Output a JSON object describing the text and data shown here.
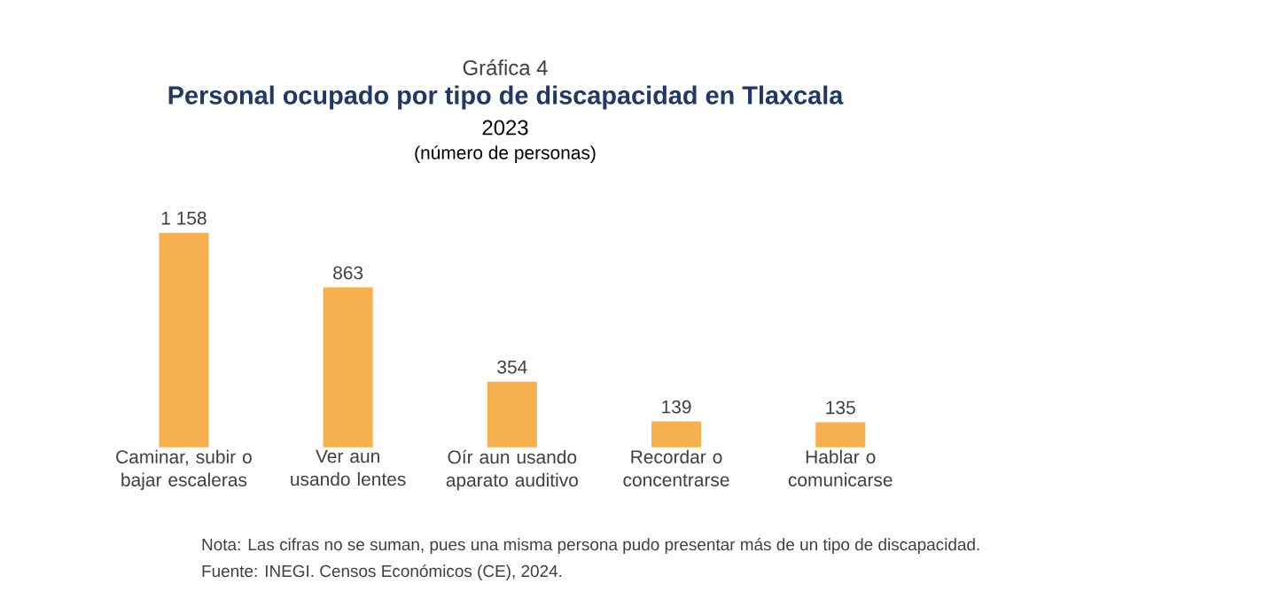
{
  "chart_data": {
    "type": "bar",
    "title": "Personal ocupado por tipo de discapacidad en Tlaxcala",
    "subtitle": "2023",
    "ylabel": "(número de personas)",
    "categories": [
      "Caminar, subir o bajar escaleras",
      "Ver aun usando lentes",
      "Oír aun usando aparato auditivo",
      "Recordar o concentrarse",
      "Hablar o comunicarse"
    ],
    "values": [
      1158,
      863,
      354,
      139,
      135
    ],
    "value_labels": [
      "1 158",
      "863",
      "354",
      "139",
      "135"
    ],
    "color": "#f7b04e",
    "annotations": [
      "Gráfica 4",
      "Nota: Las cifras no se suman, pues una misma persona pudo presentar más de un tipo de discapacidad.",
      "Fuente: INEGI. Censos Económicos (CE), 2024."
    ]
  }
}
